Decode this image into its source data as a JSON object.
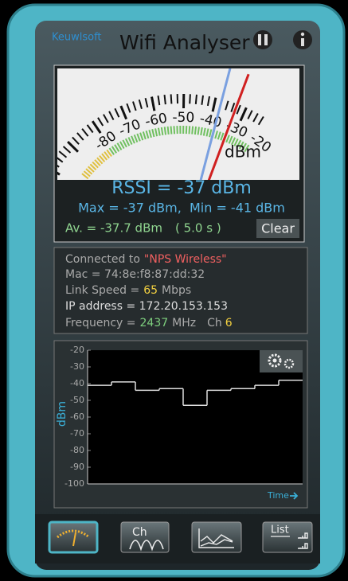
{
  "header": {
    "brand": "Keuwlsoft",
    "title": "Wifi Analyser"
  },
  "meter": {
    "scale": [
      "-80",
      "-70",
      "-60",
      "-50",
      "-40",
      "-30",
      "-20"
    ],
    "unit": "dBm",
    "rssi": "RSSI = -37 dBm",
    "maxmin": "Max = -37 dBm,  Min = -41 dBm",
    "average": "Av. = -37.7 dBm",
    "period": "( 5.0 s )",
    "clear": "Clear"
  },
  "info": {
    "connected_prefix": "Connected to",
    "ssid": "\"NPS Wireless\"",
    "mac": "Mac = 74:8e:f8:87:dd:32",
    "link_prefix": "Link Speed =",
    "link_value": "65",
    "link_unit": "Mbps",
    "ip": "IP address = 172.20.153.153",
    "freq_prefix": "Frequency =",
    "freq_value": "2437",
    "freq_unit": "MHz",
    "ch_prefix": "Ch",
    "ch_value": "6"
  },
  "graph": {
    "ylabel": "dBm",
    "xlabel": "Time",
    "ylim": [
      -20,
      -100
    ],
    "yticks": [
      -20,
      -30,
      -40,
      -50,
      -60,
      -70,
      -80,
      -90,
      -100
    ],
    "trace": [
      -41,
      -39,
      -44,
      -43,
      -53,
      -44,
      -43,
      -41,
      -38
    ]
  },
  "toolbar": {
    "ch": "Ch",
    "list": "List"
  }
}
